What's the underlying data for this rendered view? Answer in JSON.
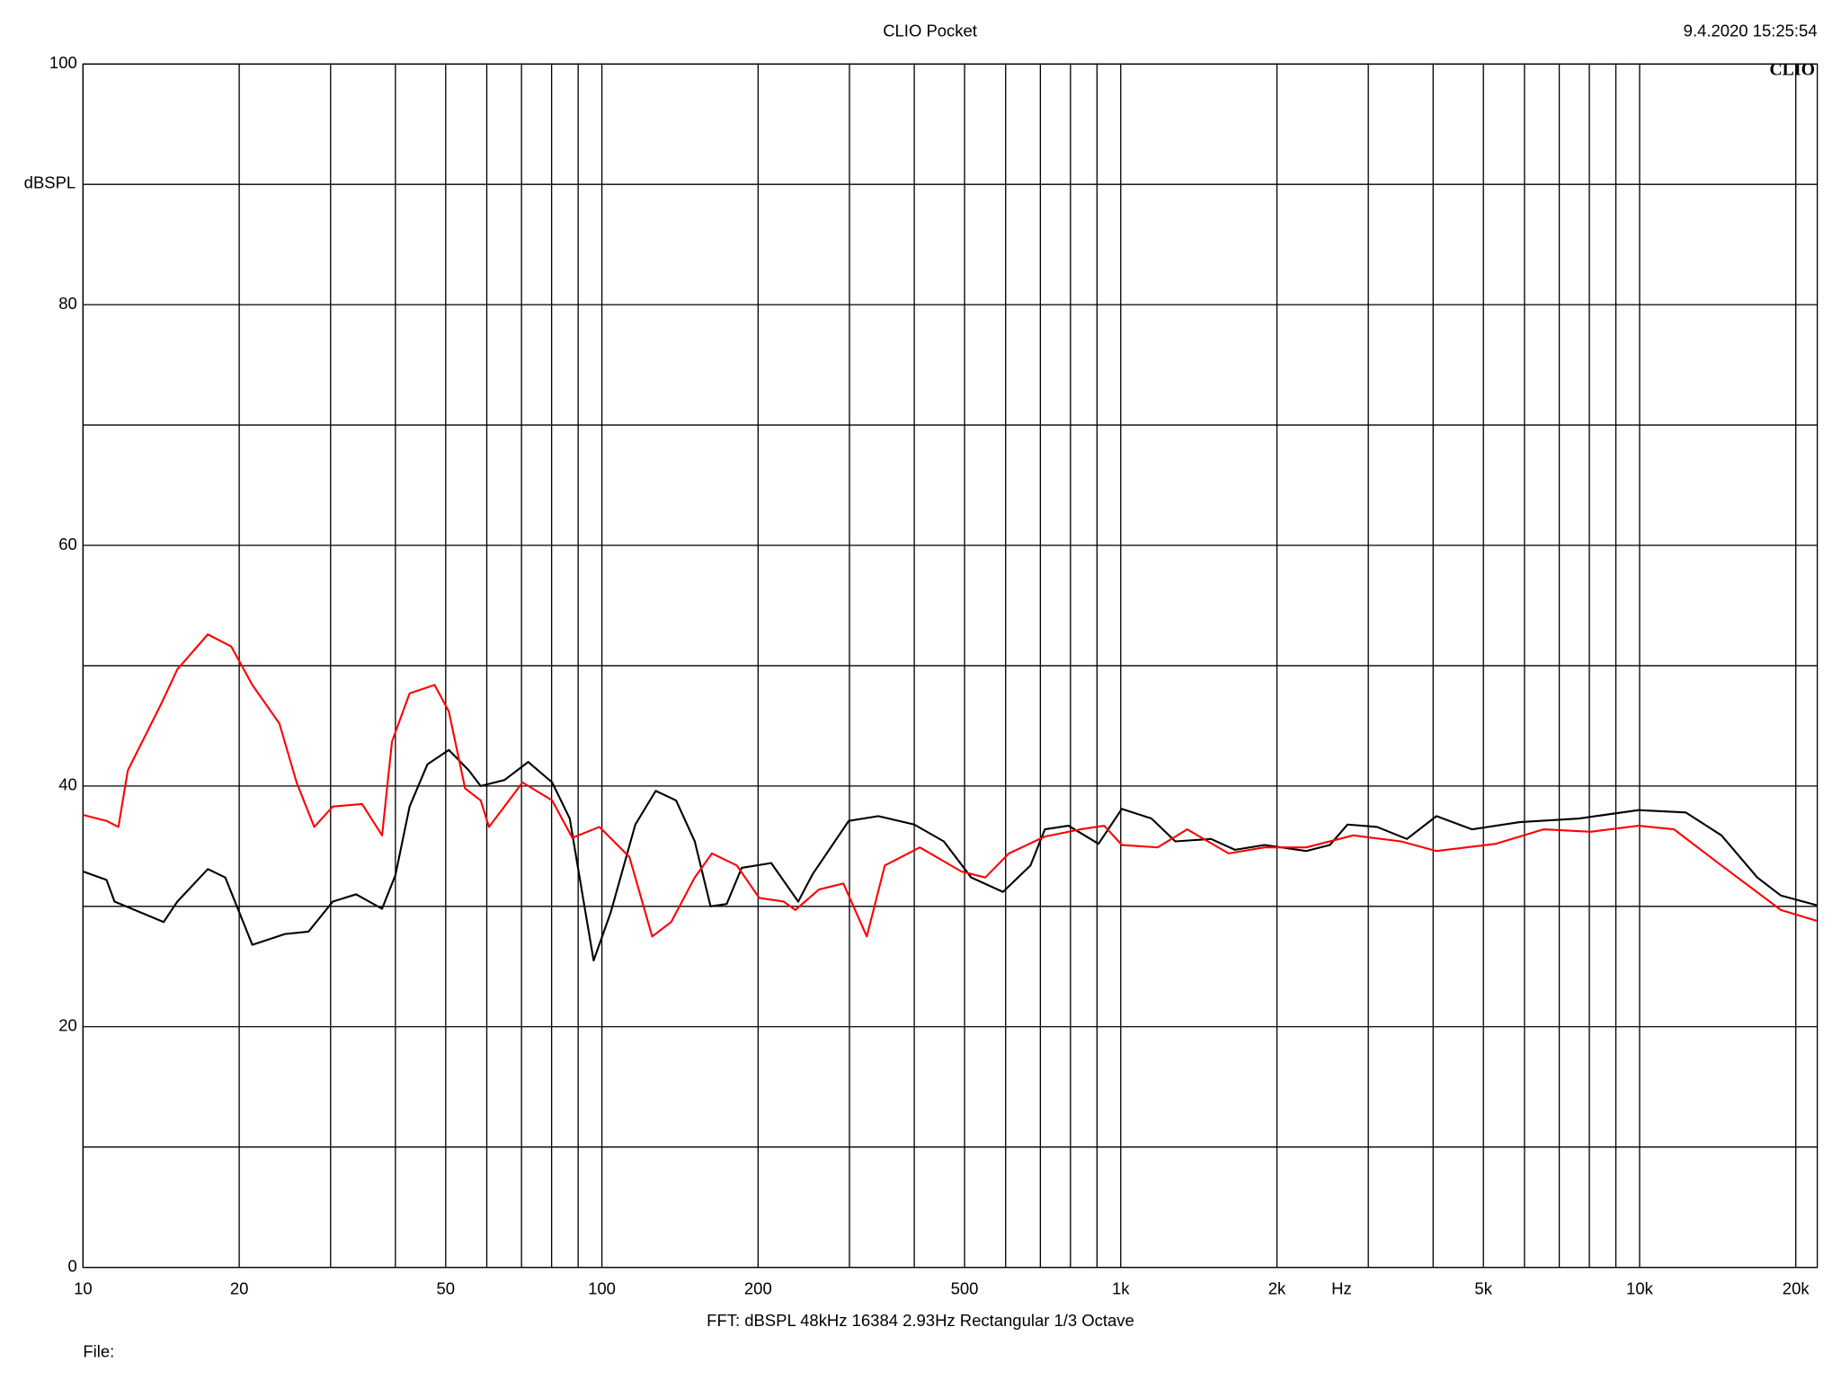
{
  "chart_data": {
    "type": "line",
    "title": "CLIO Pocket",
    "timestamp": "9.4.2020 15:25:54",
    "logo": "CLIO",
    "y_label": "dBSPL",
    "x_label": "Hz",
    "footer": "FFT:  dBSPL  48kHz   16384  2.93Hz  Rectangular  1/3 Octave",
    "file_label": "File:",
    "log_x": true,
    "grid": true,
    "xlim": [
      10,
      22000
    ],
    "ylim": [
      0,
      100
    ],
    "yticks": [
      0,
      20,
      40,
      60,
      80,
      100
    ],
    "yminor": [
      10,
      30,
      50,
      70,
      90
    ],
    "xticks": [
      10,
      20,
      50,
      100,
      200,
      500,
      {
        "value": 1000,
        "label": "1k"
      },
      {
        "value": 2000,
        "label": "2k"
      },
      {
        "value": 5000,
        "label": "5k"
      },
      {
        "value": 10000,
        "label": "10k"
      },
      {
        "value": 20000,
        "label": "20k"
      }
    ],
    "xminor": [
      30,
      40,
      60,
      70,
      80,
      90,
      300,
      400,
      600,
      700,
      800,
      900,
      3000,
      4000,
      6000,
      7000,
      8000,
      9000
    ],
    "series": [
      {
        "color": "#000000",
        "x": [
          10,
          11.1,
          11.5,
          14.3,
          15.2,
          17.4,
          18.8,
          21.2,
          24.5,
          27.2,
          30.3,
          33.6,
          37.7,
          40,
          42.6,
          46.1,
          50.7,
          55.4,
          58.4,
          64.9,
          72.1,
          80.2,
          86.7,
          91.4,
          96.4,
          104,
          116,
          127,
          139,
          151,
          162,
          174,
          186,
          212,
          239,
          255,
          299,
          341,
          400,
          456,
          515,
          593,
          670,
          714,
          793,
          906,
          1005,
          1146,
          1274,
          1493,
          1660,
          1893,
          2276,
          2529,
          2736,
          3120,
          3560,
          4060,
          4755,
          5870,
          7640,
          9950,
          12280,
          14380,
          16860,
          18720,
          21930
        ],
        "values": [
          32.9,
          32.2,
          30.4,
          28.7,
          30.4,
          33.1,
          32.4,
          26.8,
          27.7,
          27.9,
          30.4,
          31.0,
          29.8,
          32.6,
          38.3,
          41.8,
          43.0,
          41.3,
          40.0,
          40.5,
          42.0,
          40.3,
          37.3,
          31.4,
          25.5,
          29.5,
          36.8,
          39.6,
          38.8,
          35.4,
          30.0,
          30.2,
          33.2,
          33.6,
          30.4,
          32.7,
          37.1,
          37.5,
          36.8,
          35.4,
          32.4,
          31.2,
          33.4,
          36.4,
          36.7,
          35.2,
          38.1,
          37.3,
          35.4,
          35.6,
          34.7,
          35.1,
          34.6,
          35.1,
          36.8,
          36.6,
          35.6,
          37.5,
          36.4,
          37.0,
          37.3,
          38.0,
          37.8,
          35.9,
          32.4,
          30.9,
          30.1
        ]
      },
      {
        "color": "#ff0000",
        "x": [
          10,
          11.1,
          11.7,
          12.2,
          14.1,
          15.2,
          17.4,
          19.3,
          21.2,
          23.9,
          25.8,
          27.9,
          30.3,
          34.5,
          37.7,
          39.4,
          42.6,
          47.6,
          50.7,
          54.5,
          58.4,
          60.6,
          64.9,
          70.3,
          80.2,
          87.7,
          98.9,
          113,
          125,
          136,
          151,
          163,
          182,
          201,
          224,
          236,
          262,
          292,
          324,
          351,
          410,
          493,
          548,
          609,
          714,
          836,
          929,
          1005,
          1178,
          1343,
          1614,
          1893,
          2276,
          2807,
          3467,
          4060,
          5285,
          6530,
          8050,
          9950,
          11650,
          14380,
          18720,
          21930
        ],
        "values": [
          37.6,
          37.1,
          36.6,
          41.3,
          46.7,
          49.7,
          52.6,
          51.6,
          48.4,
          45.2,
          40.3,
          36.6,
          38.3,
          38.5,
          35.9,
          43.7,
          47.7,
          48.4,
          46.2,
          39.8,
          38.8,
          36.6,
          38.3,
          40.3,
          38.8,
          35.7,
          36.6,
          34.1,
          27.5,
          28.7,
          32.4,
          34.4,
          33.4,
          30.7,
          30.4,
          29.7,
          31.4,
          31.9,
          27.5,
          33.4,
          34.9,
          32.9,
          32.4,
          34.4,
          35.8,
          36.4,
          36.7,
          35.1,
          34.9,
          36.4,
          34.4,
          34.9,
          34.9,
          35.9,
          35.4,
          34.6,
          35.2,
          36.4,
          36.2,
          36.7,
          36.4,
          33.4,
          29.7,
          28.8
        ]
      }
    ]
  }
}
